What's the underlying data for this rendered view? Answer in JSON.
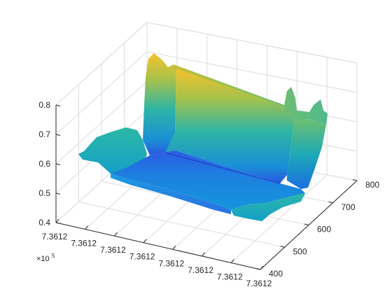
{
  "chart_data": {
    "type": "surface",
    "title": "",
    "xlabel": "",
    "ylabel": "",
    "zlabel": "",
    "x_ticks": [
      "7.3612",
      "7.3612",
      "7.3612",
      "7.3612",
      "7.3612",
      "7.3612",
      "7.3612",
      "7.3612"
    ],
    "x_exponent": "×10",
    "x_exponent_power": "5",
    "y_ticks": [
      "400",
      "500",
      "600",
      "700",
      "800"
    ],
    "z_ticks": [
      "0.4",
      "0.5",
      "0.6",
      "0.7",
      "0.8"
    ],
    "zlim": [
      0.4,
      0.8
    ],
    "ylim": [
      400,
      800
    ],
    "grid": true,
    "colormap": "parula",
    "surface_profile": {
      "description_values_along_y": [
        430,
        470,
        510,
        540,
        570,
        600,
        640,
        680,
        710,
        740,
        770
      ],
      "z_front_edge": [
        0.58,
        0.58,
        0.56,
        0.55,
        0.55,
        0.55,
        0.55,
        0.55,
        0.56,
        0.58,
        0.6
      ],
      "z_back_edge": [
        0.62,
        0.64,
        0.8,
        0.79,
        0.77,
        0.75,
        0.73,
        0.71,
        0.75,
        0.71,
        0.68
      ]
    }
  }
}
